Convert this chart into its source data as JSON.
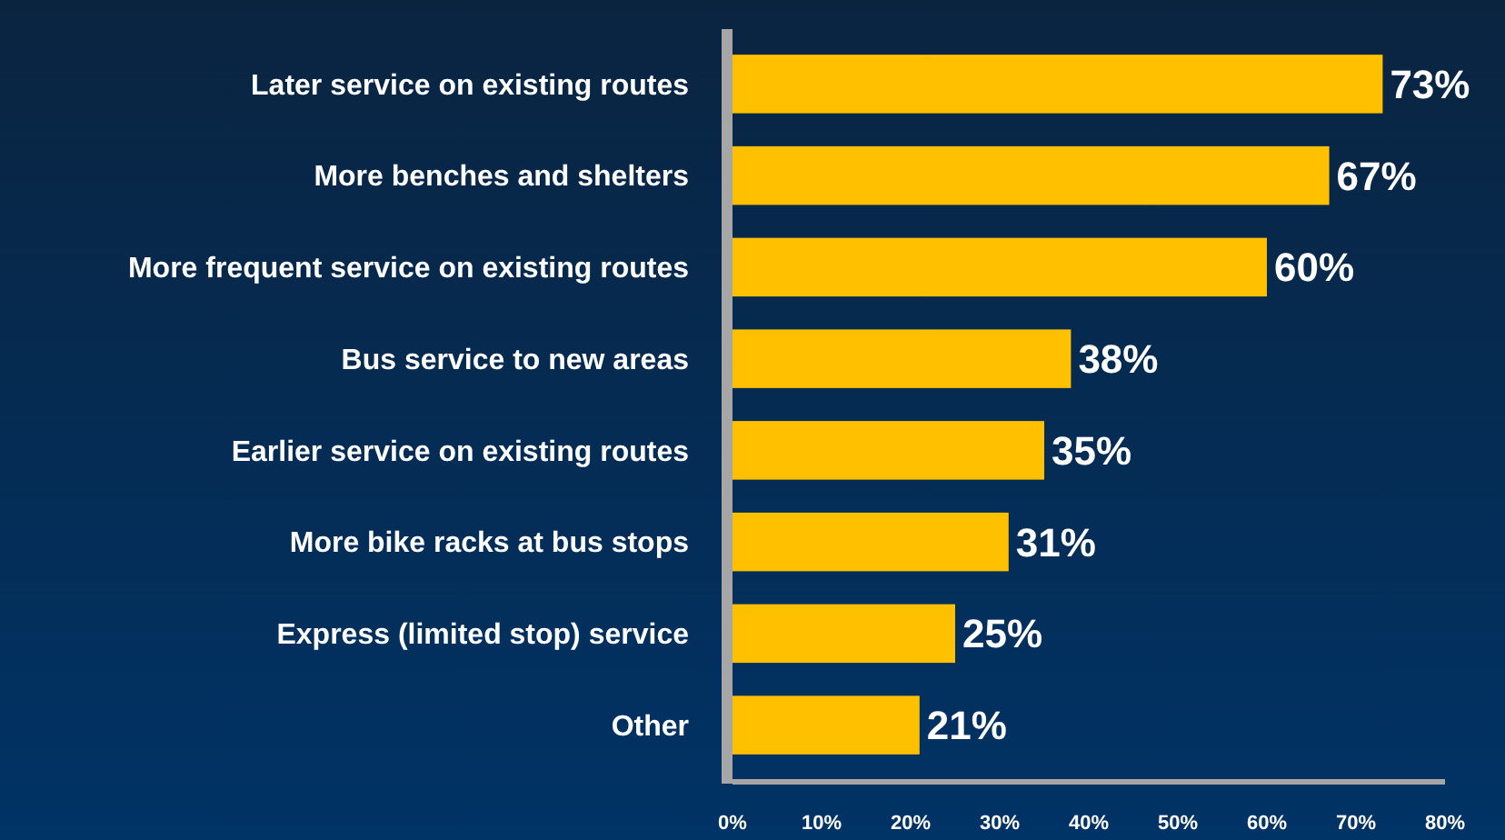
{
  "chart_data": {
    "type": "bar",
    "orientation": "horizontal",
    "categories": [
      "Later service on existing routes",
      "More benches and shelters",
      "More frequent service on existing routes",
      "Bus service to new areas",
      "Earlier service on existing routes",
      "More bike racks at bus stops",
      "Express (limited stop) service",
      "Other"
    ],
    "values": [
      73,
      67,
      60,
      38,
      35,
      31,
      25,
      21
    ],
    "value_labels": [
      "73%",
      "67%",
      "60%",
      "38%",
      "35%",
      "31%",
      "25%",
      "21%"
    ],
    "color": "#ffc000",
    "xlim": [
      0,
      80
    ],
    "xticks": [
      {
        "value": 0,
        "label": "0%"
      },
      {
        "value": 10,
        "label": "10%"
      },
      {
        "value": 20,
        "label": "20%"
      },
      {
        "value": 30,
        "label": "30%"
      },
      {
        "value": 40,
        "label": "40%"
      },
      {
        "value": 50,
        "label": "50%"
      },
      {
        "value": 60,
        "label": "60%"
      },
      {
        "value": 70,
        "label": "70%"
      },
      {
        "value": 80,
        "label": "80%"
      }
    ],
    "grid": false
  }
}
